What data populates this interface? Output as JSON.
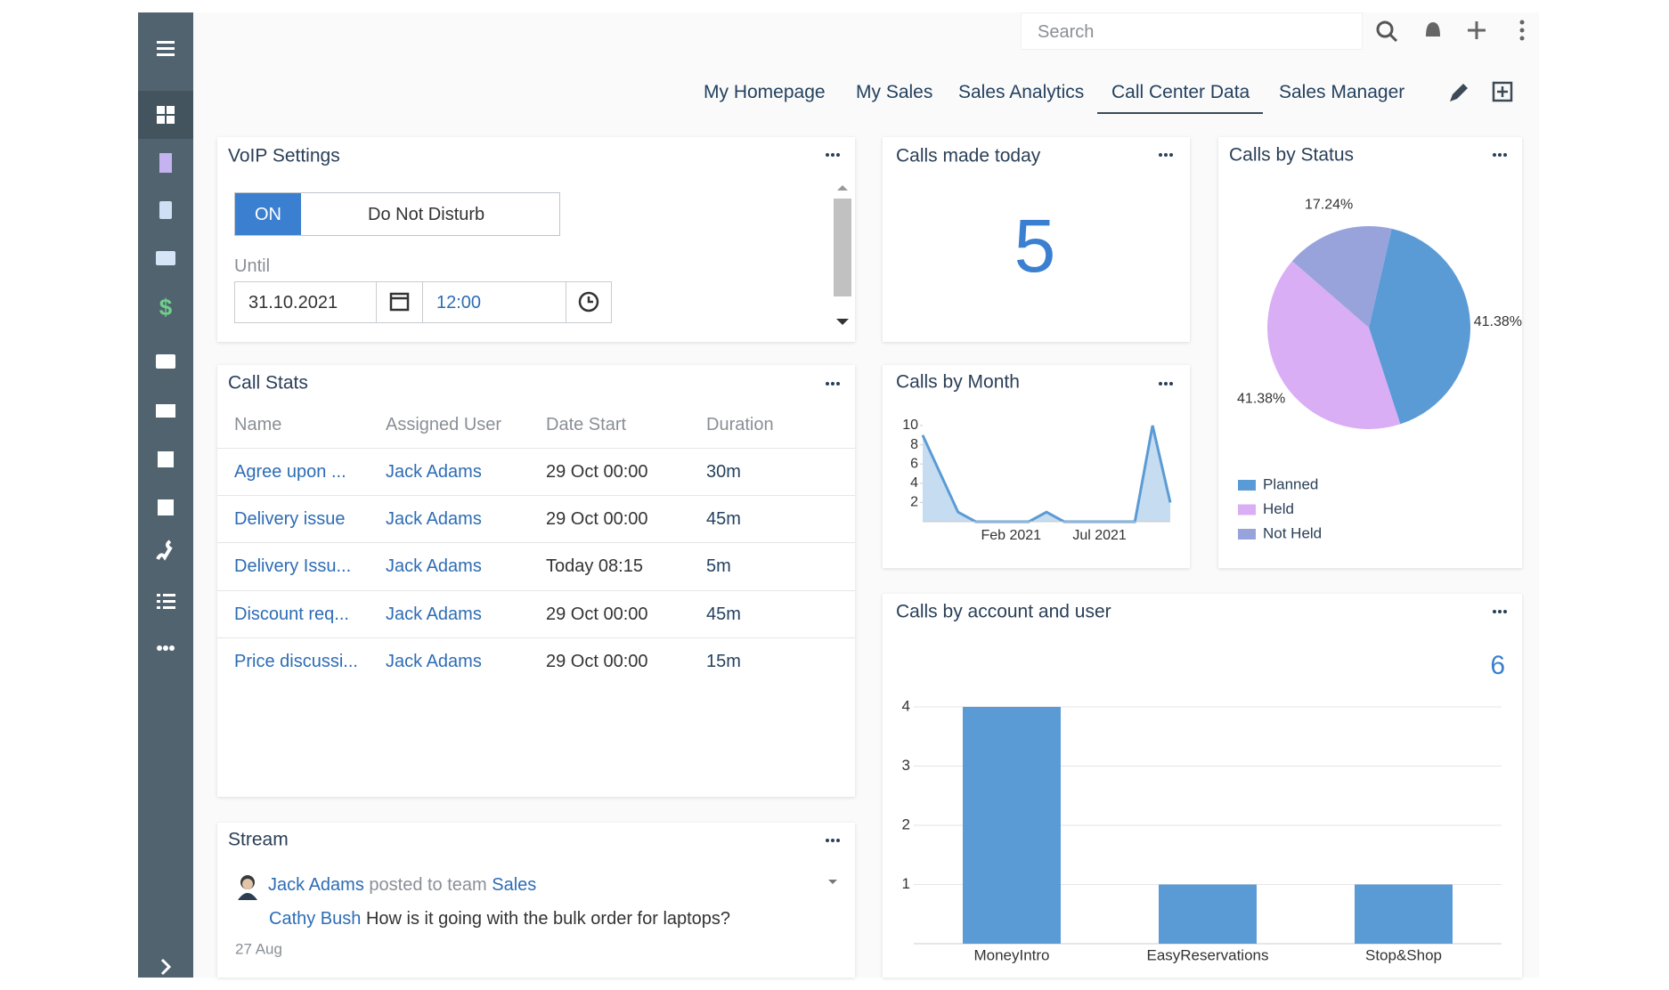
{
  "search_placeholder": "Search",
  "tabs": [
    "My Homepage",
    "My Sales",
    "Sales Analytics",
    "Call Center Data",
    "Sales Manager"
  ],
  "voip": {
    "title": "VoIP Settings",
    "on": "ON",
    "dnd": "Do Not Disturb",
    "until": "Until",
    "date": "31.10.2021",
    "time": "12:00"
  },
  "calls_today": {
    "title": "Calls made today",
    "value": 5
  },
  "call_stats": {
    "title": "Call Stats",
    "columns": [
      "Name",
      "Assigned User",
      "Date Start",
      "Duration"
    ],
    "rows": [
      [
        "Agree upon ...",
        "Jack Adams",
        "29 Oct 00:00",
        "30m"
      ],
      [
        "Delivery issue",
        "Jack Adams",
        "29 Oct 00:00",
        "45m"
      ],
      [
        "Delivery Issu...",
        "Jack Adams",
        "Today 08:15",
        "5m"
      ],
      [
        "Discount req...",
        "Jack Adams",
        "29 Oct 00:00",
        "45m"
      ],
      [
        "Price discussi...",
        "Jack Adams",
        "29 Oct 00:00",
        "15m"
      ]
    ]
  },
  "stream": {
    "title": "Stream",
    "author": "Jack Adams",
    "action": "posted to team",
    "team": "Sales",
    "mention": "Cathy Bush",
    "message": "How is it going with the bulk order for laptops?",
    "date": "27 Aug"
  },
  "chart_data": [
    {
      "type": "line",
      "title": "Calls by Month",
      "categories": [
        null,
        null,
        null,
        null,
        null,
        "Feb 2021",
        null,
        null,
        null,
        null,
        "Jul 2021",
        null,
        null,
        null,
        null
      ],
      "values": [
        9,
        5,
        1,
        0,
        0,
        0,
        0,
        1,
        0,
        0,
        0,
        0,
        0,
        10,
        2
      ],
      "color": "#5b9bd5",
      "ylim": [
        0,
        10
      ],
      "yticks": [
        2,
        4,
        6,
        8,
        10
      ]
    },
    {
      "type": "pie",
      "title": "Calls by Status",
      "categories": [
        "Planned",
        "Held",
        "Not Held"
      ],
      "values": [
        41.38,
        41.38,
        17.24
      ],
      "value_labels": [
        "41.38%",
        "41.38%",
        "17.24%"
      ],
      "colors": [
        "#5b9bd5",
        "#d9aef5",
        "#98a3dc"
      ]
    },
    {
      "type": "bar",
      "title": "Calls by account and user",
      "total": 6,
      "categories": [
        "MoneyIntro",
        "EasyReservations",
        "Stop&Shop"
      ],
      "values": [
        4,
        1,
        1
      ],
      "color": "#5b9bd5",
      "ylim": [
        0,
        4
      ],
      "yticks": [
        1,
        2,
        3,
        4
      ],
      "grid": true
    }
  ]
}
